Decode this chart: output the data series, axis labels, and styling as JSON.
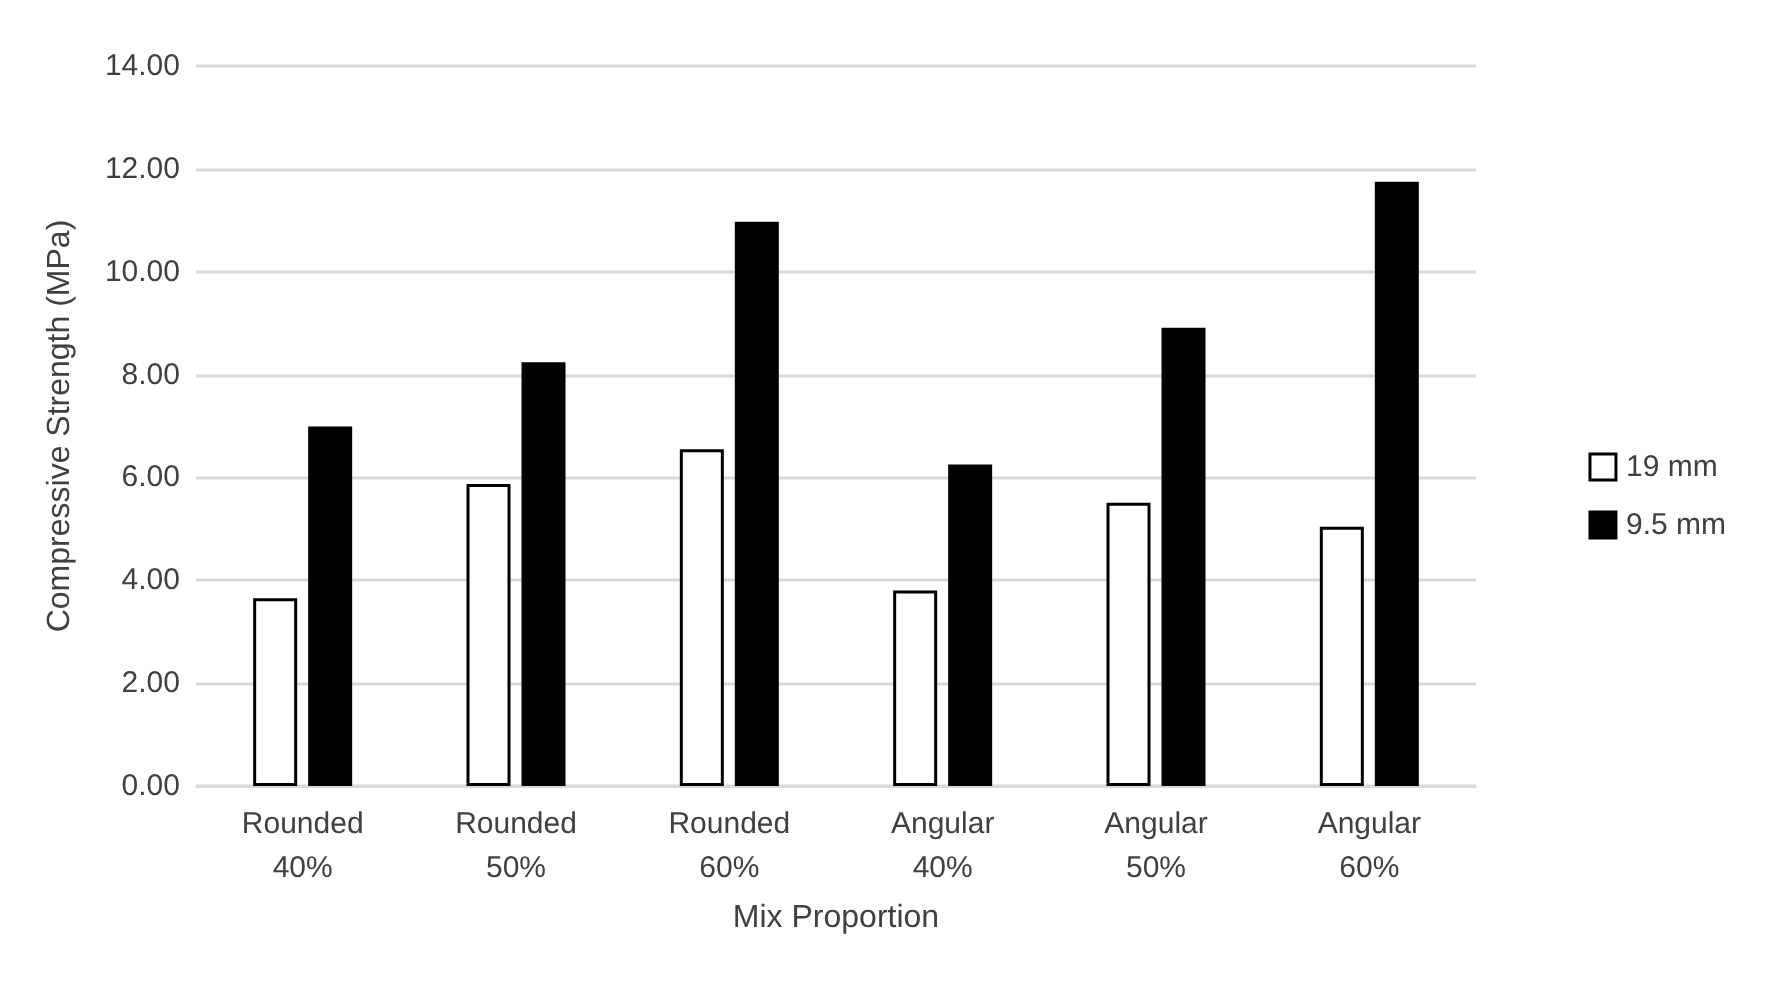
{
  "chart_data": {
    "type": "bar",
    "xlabel": "Mix Proportion",
    "ylabel": "Compressive Strength (MPa)",
    "categories": [
      "Rounded\n40%",
      "Rounded\n50%",
      "Rounded\n60%",
      "Angular\n40%",
      "Angular\n50%",
      "Angular\n60%"
    ],
    "series": [
      {
        "name": "19 mm",
        "color": "#ffffff",
        "values": [
          3.65,
          5.87,
          6.55,
          3.8,
          5.51,
          5.04
        ]
      },
      {
        "name": "9.5 mm",
        "color": "#000000",
        "values": [
          6.99,
          8.24,
          10.97,
          6.25,
          8.91,
          11.75
        ]
      }
    ],
    "ylim": [
      0,
      14
    ],
    "yticks": [
      {
        "value": 0,
        "label": "0.00"
      },
      {
        "value": 2,
        "label": "2.00"
      },
      {
        "value": 4,
        "label": "4.00"
      },
      {
        "value": 6,
        "label": "6.00"
      },
      {
        "value": 8,
        "label": "8.00"
      },
      {
        "value": 10,
        "label": "10.00"
      },
      {
        "value": 12,
        "label": "12.00"
      },
      {
        "value": 14,
        "label": "14.00"
      }
    ],
    "grid": "y",
    "legend": "right"
  }
}
